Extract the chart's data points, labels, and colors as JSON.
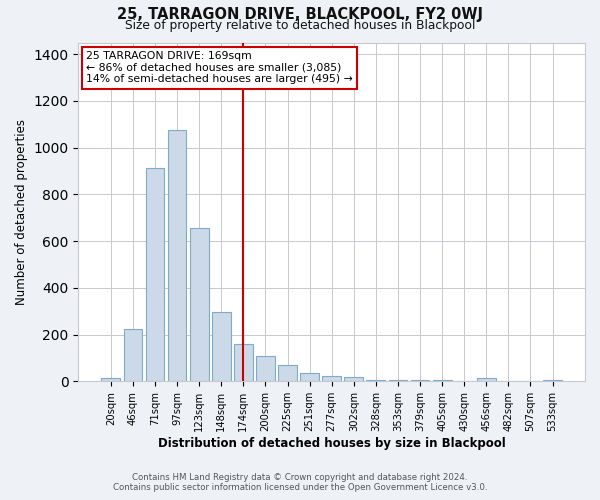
{
  "title": "25, TARRAGON DRIVE, BLACKPOOL, FY2 0WJ",
  "subtitle": "Size of property relative to detached houses in Blackpool",
  "xlabel": "Distribution of detached houses by size in Blackpool",
  "ylabel": "Number of detached properties",
  "bar_labels": [
    "20sqm",
    "46sqm",
    "71sqm",
    "97sqm",
    "123sqm",
    "148sqm",
    "174sqm",
    "200sqm",
    "225sqm",
    "251sqm",
    "277sqm",
    "302sqm",
    "328sqm",
    "353sqm",
    "379sqm",
    "405sqm",
    "430sqm",
    "456sqm",
    "482sqm",
    "507sqm",
    "533sqm"
  ],
  "bar_values": [
    15,
    225,
    915,
    1075,
    655,
    295,
    160,
    108,
    70,
    35,
    25,
    20,
    5,
    5,
    5,
    5,
    0,
    15,
    0,
    0,
    5
  ],
  "bar_color": "#ccd9e8",
  "bar_edge_color": "#7faac8",
  "vline_x_label": "174sqm",
  "vline_color": "#cc0000",
  "annotation_title": "25 TARRAGON DRIVE: 169sqm",
  "annotation_line1": "← 86% of detached houses are smaller (3,085)",
  "annotation_line2": "14% of semi-detached houses are larger (495) →",
  "annotation_box_color": "white",
  "annotation_box_edge_color": "#cc0000",
  "ylim": [
    0,
    1450
  ],
  "yticks": [
    0,
    200,
    400,
    600,
    800,
    1000,
    1200,
    1400
  ],
  "footnote1": "Contains HM Land Registry data © Crown copyright and database right 2024.",
  "footnote2": "Contains public sector information licensed under the Open Government Licence v3.0.",
  "bg_color": "#eef2f7",
  "plot_bg_color": "#ffffff",
  "grid_color": "#c8c8d0"
}
